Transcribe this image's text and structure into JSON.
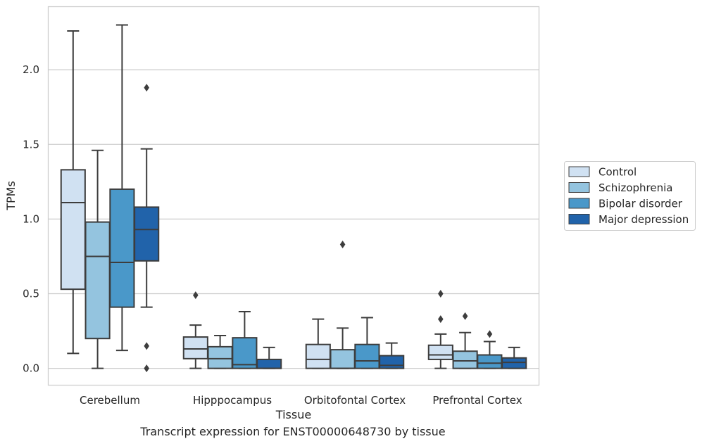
{
  "caption": "Transcript expression for ENST00000648730 by tissue",
  "chart_data": {
    "type": "box",
    "title": "",
    "xlabel": "Tissue",
    "ylabel": "TPMs",
    "ylim": [
      -0.11,
      2.42
    ],
    "yticks": [
      0.0,
      0.5,
      1.0,
      1.5,
      2.0
    ],
    "ytick_labels": [
      "0.0",
      "0.5",
      "1.0",
      "1.5",
      "2.0"
    ],
    "grid": "horizontal",
    "legend_position": "right",
    "categories": [
      "Cerebellum",
      "Hipppocampus",
      "Orbitofontal Cortex",
      "Prefrontal Cortex"
    ],
    "series": [
      {
        "name": "Control",
        "color": "#d0e1f2",
        "boxes": [
          {
            "whislo": 0.1,
            "q1": 0.53,
            "med": 1.11,
            "q3": 1.33,
            "whishi": 2.26,
            "fliers": []
          },
          {
            "whislo": 0.0,
            "q1": 0.065,
            "med": 0.13,
            "q3": 0.21,
            "whishi": 0.29,
            "fliers": [
              0.49
            ]
          },
          {
            "whislo": 0.0,
            "q1": 0.0,
            "med": 0.06,
            "q3": 0.16,
            "whishi": 0.33,
            "fliers": []
          },
          {
            "whislo": 0.0,
            "q1": 0.06,
            "med": 0.09,
            "q3": 0.155,
            "whishi": 0.23,
            "fliers": [
              0.33,
              0.5
            ]
          }
        ]
      },
      {
        "name": "Schizophrenia",
        "color": "#94c4df",
        "boxes": [
          {
            "whislo": 0.0,
            "q1": 0.2,
            "med": 0.75,
            "q3": 0.98,
            "whishi": 1.46,
            "fliers": []
          },
          {
            "whislo": 0.0,
            "q1": 0.0,
            "med": 0.065,
            "q3": 0.145,
            "whishi": 0.22,
            "fliers": []
          },
          {
            "whislo": 0.0,
            "q1": 0.0,
            "med": 0.0,
            "q3": 0.125,
            "whishi": 0.27,
            "fliers": [
              0.83
            ]
          },
          {
            "whislo": 0.0,
            "q1": 0.0,
            "med": 0.05,
            "q3": 0.115,
            "whishi": 0.24,
            "fliers": [
              0.35
            ]
          }
        ]
      },
      {
        "name": "Bipolar disorder",
        "color": "#4a98c9",
        "boxes": [
          {
            "whislo": 0.12,
            "q1": 0.41,
            "med": 0.71,
            "q3": 1.2,
            "whishi": 2.3,
            "fliers": []
          },
          {
            "whislo": 0.0,
            "q1": 0.0,
            "med": 0.025,
            "q3": 0.205,
            "whishi": 0.38,
            "fliers": []
          },
          {
            "whislo": 0.0,
            "q1": 0.0,
            "med": 0.05,
            "q3": 0.16,
            "whishi": 0.34,
            "fliers": []
          },
          {
            "whislo": 0.0,
            "q1": 0.0,
            "med": 0.035,
            "q3": 0.09,
            "whishi": 0.18,
            "fliers": [
              0.23
            ]
          }
        ]
      },
      {
        "name": "Major depression",
        "color": "#2163aa",
        "boxes": [
          {
            "whislo": 0.41,
            "q1": 0.72,
            "med": 0.93,
            "q3": 1.08,
            "whishi": 1.47,
            "fliers": [
              0.0,
              0.15,
              1.88
            ]
          },
          {
            "whislo": 0.0,
            "q1": 0.0,
            "med": 0.0,
            "q3": 0.06,
            "whishi": 0.14,
            "fliers": []
          },
          {
            "whislo": 0.0,
            "q1": 0.0,
            "med": 0.02,
            "q3": 0.085,
            "whishi": 0.17,
            "fliers": []
          },
          {
            "whislo": 0.0,
            "q1": 0.0,
            "med": 0.04,
            "q3": 0.07,
            "whishi": 0.14,
            "fliers": []
          }
        ]
      }
    ]
  }
}
